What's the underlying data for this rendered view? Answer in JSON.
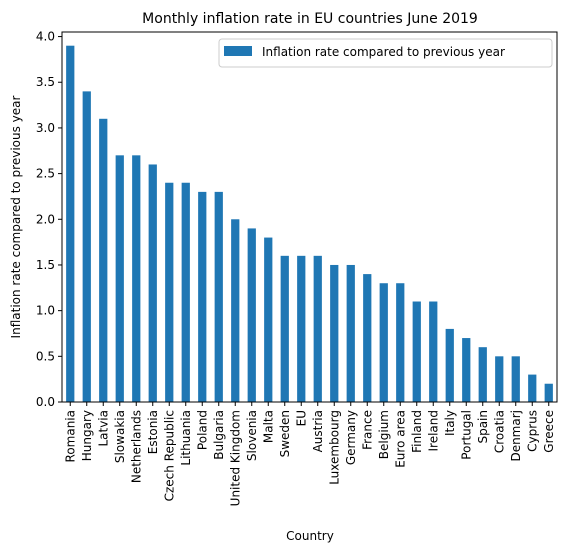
{
  "chart_data": {
    "type": "bar",
    "title": "Monthly inflation rate in EU countries June 2019",
    "xlabel": "Country",
    "ylabel": "Inflation rate compared to previous year",
    "ylim": [
      0,
      4.05
    ],
    "yticks": [
      "0.0",
      "0.5",
      "1.0",
      "1.5",
      "2.0",
      "2.5",
      "3.0",
      "3.5",
      "4.0"
    ],
    "grid": false,
    "legend": "top-right",
    "categories": [
      "Romania",
      "Hungary",
      "Latvia",
      "Slowakia",
      "Netherlands",
      "Estonia",
      "Czech Republic",
      "Lithuania",
      "Poland",
      "Bulgaria",
      "United Kingdom",
      "Slovenia",
      "Malta",
      "Sweden",
      "EU",
      "Austria",
      "Luxembourg",
      "Germany",
      "France",
      "Belgium",
      "Euro area",
      "Finland",
      "Ireland",
      "Italy",
      "Portugal",
      "Spain",
      "Croatia",
      "Denmarj",
      "Cyprus",
      "Greece"
    ],
    "series": [
      {
        "name": "Inflation rate compared to previous year",
        "color": "#1f77b4",
        "values": [
          3.9,
          3.4,
          3.1,
          2.7,
          2.7,
          2.6,
          2.4,
          2.4,
          2.3,
          2.3,
          2.0,
          1.9,
          1.8,
          1.6,
          1.6,
          1.6,
          1.5,
          1.5,
          1.4,
          1.3,
          1.3,
          1.1,
          1.1,
          0.8,
          0.7,
          0.6,
          0.5,
          0.5,
          0.3,
          0.2
        ]
      }
    ]
  }
}
